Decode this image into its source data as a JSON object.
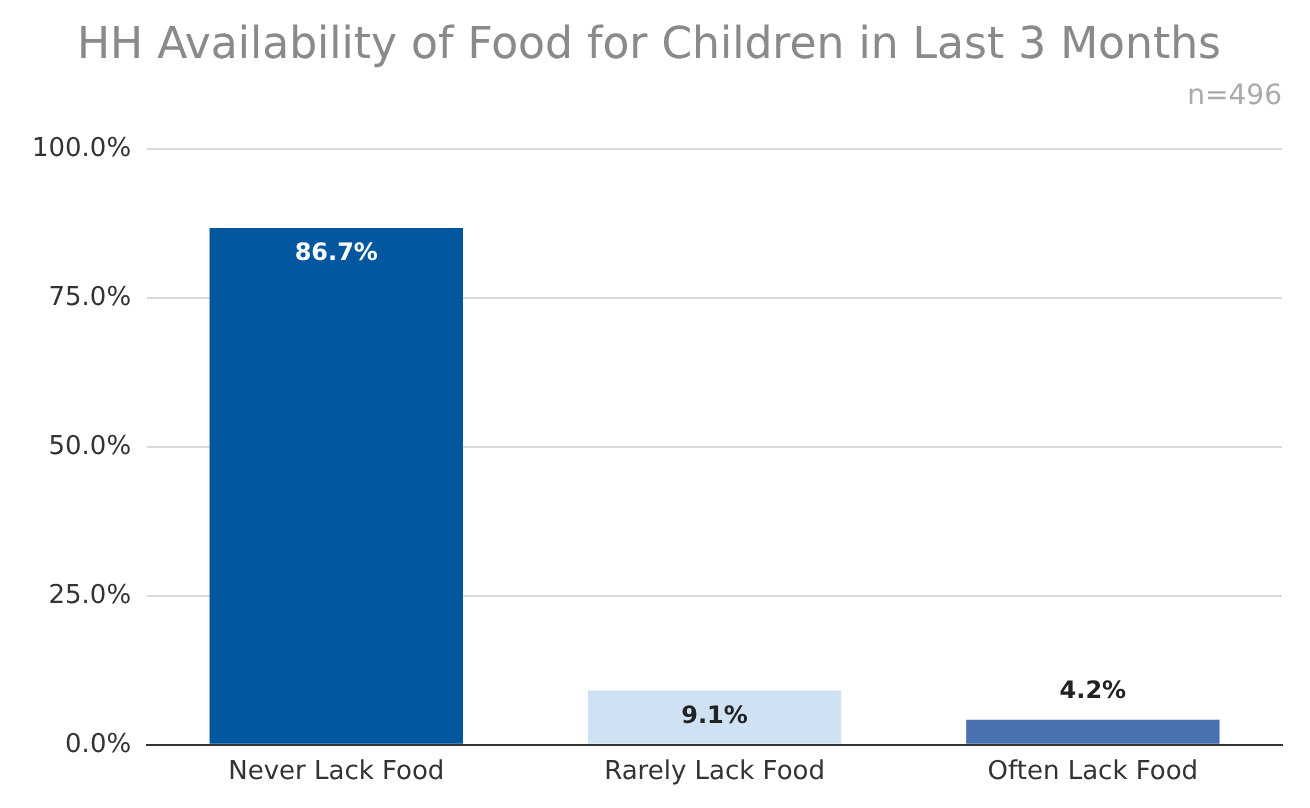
{
  "chart_data": {
    "type": "bar",
    "title": "HH Availability of Food for Children in Last 3 Months",
    "annotations": [
      "n=496"
    ],
    "categories": [
      "Never Lack Food",
      "Rarely Lack Food",
      "Often Lack Food"
    ],
    "values": [
      86.7,
      9.1,
      4.2
    ],
    "colors": [
      "#02579e",
      "#cfe2f3",
      "#4a72b0"
    ],
    "value_labels": [
      "86.7%",
      "9.1%",
      "4.2%"
    ],
    "ylim": [
      0,
      100
    ],
    "yticks": [
      {
        "value": 0,
        "label": "0.0%"
      },
      {
        "value": 25,
        "label": "25.0%"
      },
      {
        "value": 50,
        "label": "50.0%"
      },
      {
        "value": 75,
        "label": "75.0%"
      },
      {
        "value": 100,
        "label": "100.0%"
      }
    ],
    "grid": "y",
    "legend": false
  }
}
